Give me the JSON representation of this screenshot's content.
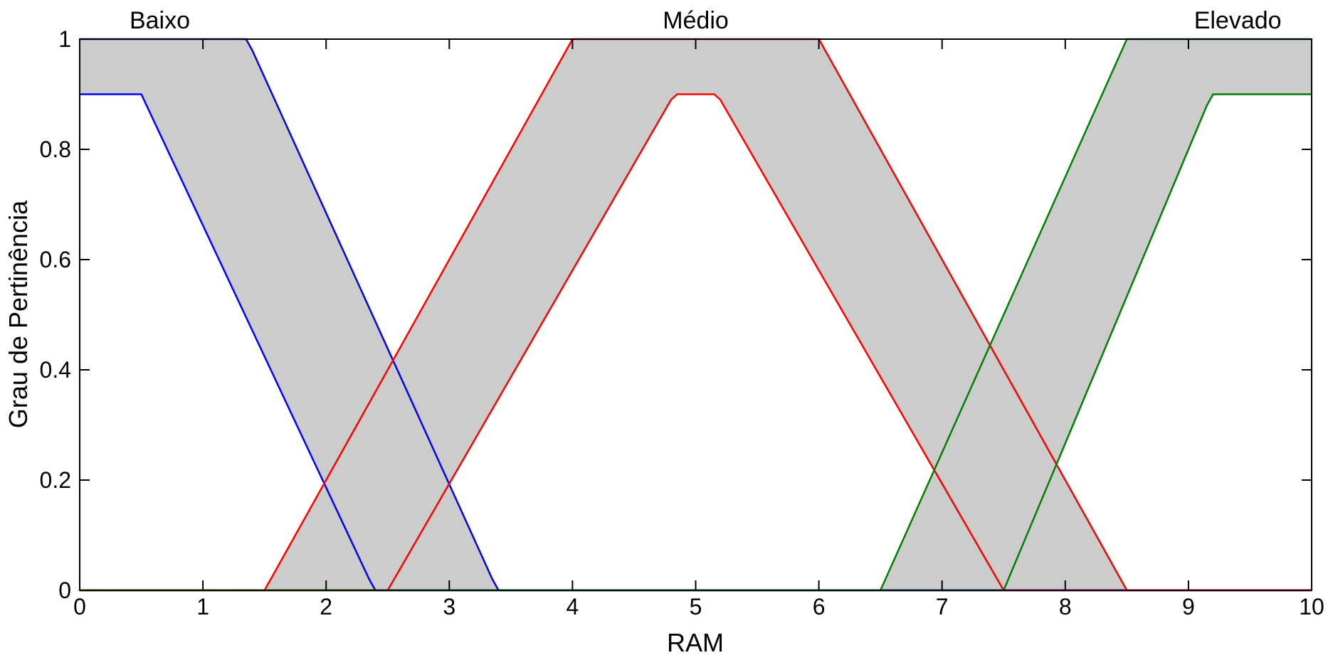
{
  "chart_data": {
    "type": "area",
    "xlabel": "RAM",
    "ylabel": "Grau de Pertinência",
    "xlim": [
      0,
      10
    ],
    "ylim": [
      0,
      1
    ],
    "x_ticks": [
      "0",
      "1",
      "2",
      "3",
      "4",
      "5",
      "6",
      "7",
      "8",
      "9",
      "10"
    ],
    "y_ticks": [
      "0",
      "0.2",
      "0.4",
      "0.6",
      "0.8",
      "1"
    ],
    "grid": false,
    "series": [
      {
        "name": "Baixo",
        "color": "#0000ff",
        "fill": "#cccccc",
        "upper": [
          [
            0,
            1
          ],
          [
            1.35,
            1
          ],
          [
            1.4,
            0.98
          ],
          [
            3.35,
            0.02
          ],
          [
            3.4,
            0
          ],
          [
            10,
            0
          ]
        ],
        "lower": [
          [
            0,
            0.9
          ],
          [
            0.5,
            0.9
          ],
          [
            2.35,
            0.02
          ],
          [
            2.4,
            0
          ],
          [
            10,
            0
          ]
        ]
      },
      {
        "name": "Médio",
        "color": "#ff0000",
        "fill": "#cccccc",
        "upper": [
          [
            0,
            0
          ],
          [
            1.5,
            0
          ],
          [
            4,
            1
          ],
          [
            6,
            1
          ],
          [
            8.5,
            0
          ],
          [
            10,
            0
          ]
        ],
        "lower": [
          [
            0,
            0
          ],
          [
            2.5,
            0
          ],
          [
            4.8,
            0.89
          ],
          [
            4.85,
            0.9
          ],
          [
            5.15,
            0.9
          ],
          [
            5.2,
            0.89
          ],
          [
            7.5,
            0
          ],
          [
            10,
            0
          ]
        ]
      },
      {
        "name": "Elevado",
        "color": "#007f00",
        "fill": "#cccccc",
        "upper": [
          [
            0,
            0
          ],
          [
            6.5,
            0
          ],
          [
            8.5,
            1
          ],
          [
            10,
            1
          ]
        ],
        "lower": [
          [
            0,
            0
          ],
          [
            7.5,
            0
          ],
          [
            9.15,
            0.88
          ],
          [
            9.2,
            0.9
          ],
          [
            10,
            0.9
          ]
        ]
      }
    ],
    "set_labels": [
      {
        "text": "Baixo",
        "x": 0.65
      },
      {
        "text": "Médio",
        "x": 5.0
      },
      {
        "text": "Elevado",
        "x": 9.4
      }
    ]
  }
}
